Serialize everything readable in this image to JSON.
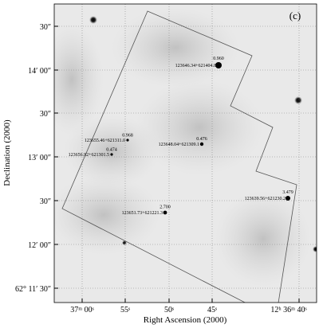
{
  "panel_label": "(c)",
  "x_axis": {
    "title": "Right Ascension (2000)",
    "ticks": [
      "37ᵐ 00ˢ",
      "55ˢ",
      "50ˢ",
      "45ˢ",
      "12ʰ 36ᵐ 40ˢ"
    ]
  },
  "y_axis": {
    "title": "Declination (2000)",
    "ticks": [
      "30″",
      "14′ 00″",
      "30″",
      "13′ 00″",
      "30″",
      "12′ 00″",
      "62° 11′ 30″"
    ]
  },
  "sources": [
    {
      "name": "123646.34+621404.8",
      "value": "0.960"
    },
    {
      "name": "123655.46+621311.0",
      "value": "0.968"
    },
    {
      "name": "123656.92+621301.5",
      "value": "0.474"
    },
    {
      "name": "123648.04+621309.1",
      "value": "0.476"
    },
    {
      "name": "123651.73+621221.3",
      "value": "2.700"
    },
    {
      "name": "123639.56+621230.2",
      "value": "3.479"
    }
  ]
}
